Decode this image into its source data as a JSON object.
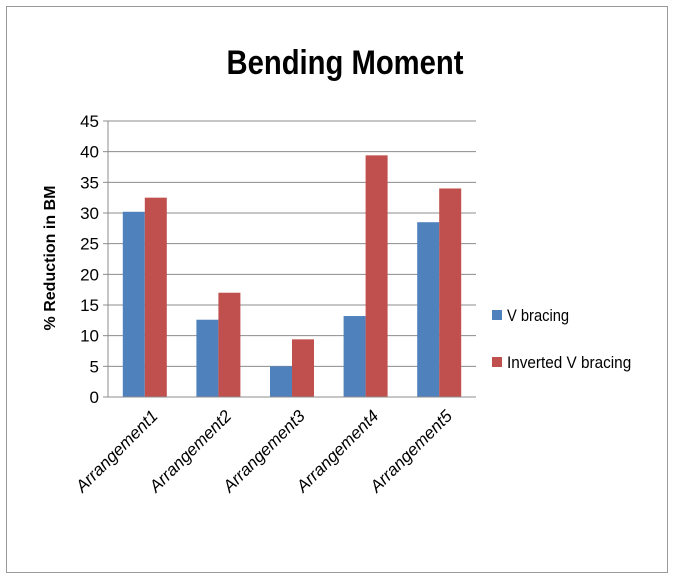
{
  "chart_data": {
    "type": "bar",
    "title": "Bending Moment",
    "xlabel": "",
    "ylabel": "% Reduction in BM",
    "ylim": [
      0,
      45
    ],
    "yticks": [
      0,
      5,
      10,
      15,
      20,
      25,
      30,
      35,
      40,
      45
    ],
    "grid": true,
    "legend": "right",
    "categories": [
      "Arrangement1",
      "Arrangement2",
      "Arrangement3",
      "Arrangement4",
      "Arrangement5"
    ],
    "series": [
      {
        "name": "V bracing",
        "color": "#4f81bd",
        "values": [
          30.2,
          12.6,
          5.0,
          13.2,
          28.5
        ]
      },
      {
        "name": "Inverted V bracing",
        "color": "#c0504d",
        "values": [
          32.5,
          17.0,
          9.4,
          39.4,
          34.0
        ]
      }
    ]
  }
}
